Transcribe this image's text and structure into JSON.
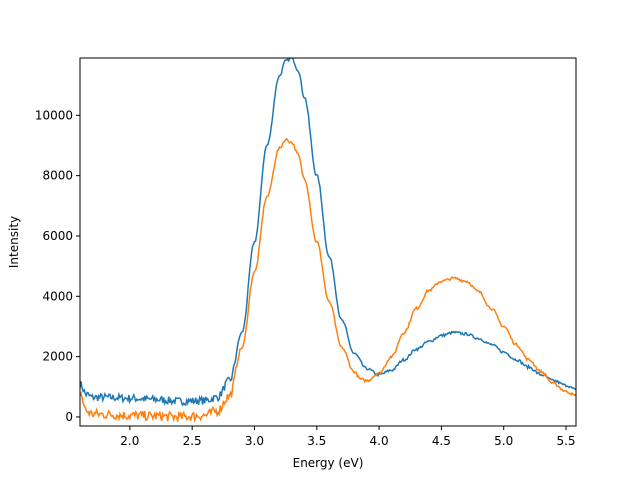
{
  "chart_data": {
    "type": "line",
    "title": "",
    "xlabel": "Energy (eV)",
    "ylabel": "Intensity",
    "xlim": [
      1.6,
      5.58
    ],
    "ylim": [
      -300,
      11900
    ],
    "grid": false,
    "legend": null,
    "xticks": [
      2.0,
      2.5,
      3.0,
      3.5,
      4.0,
      4.5,
      5.0,
      5.5
    ],
    "xtick_labels": [
      "2.0",
      "2.5",
      "3.0",
      "3.5",
      "4.0",
      "4.5",
      "5.0",
      "5.5"
    ],
    "yticks": [
      0,
      2000,
      4000,
      6000,
      8000,
      10000
    ],
    "ytick_labels": [
      "0",
      "2000",
      "4000",
      "6000",
      "8000",
      "10000"
    ],
    "series": [
      {
        "name": "series-1",
        "color": "#1f77b4",
        "x": [
          1.6,
          1.65,
          1.7,
          1.8,
          2.0,
          2.2,
          2.4,
          2.6,
          2.7,
          2.8,
          2.9,
          3.0,
          3.1,
          3.2,
          3.25,
          3.3,
          3.35,
          3.4,
          3.5,
          3.6,
          3.7,
          3.8,
          3.9,
          4.0,
          4.1,
          4.2,
          4.3,
          4.4,
          4.5,
          4.6,
          4.7,
          4.8,
          4.9,
          5.0,
          5.1,
          5.2,
          5.3,
          5.4,
          5.5,
          5.58
        ],
        "y": [
          1100,
          750,
          650,
          650,
          620,
          580,
          520,
          540,
          650,
          1200,
          2800,
          5800,
          9000,
          11300,
          11800,
          11900,
          11500,
          10600,
          8000,
          5300,
          3200,
          2100,
          1600,
          1400,
          1550,
          1900,
          2250,
          2500,
          2700,
          2800,
          2750,
          2600,
          2400,
          2150,
          1900,
          1650,
          1400,
          1200,
          1050,
          900
        ]
      },
      {
        "name": "series-2",
        "color": "#ff7f0e",
        "x": [
          1.6,
          1.65,
          1.7,
          1.8,
          2.0,
          2.2,
          2.4,
          2.6,
          2.7,
          2.8,
          2.9,
          3.0,
          3.1,
          3.2,
          3.25,
          3.3,
          3.35,
          3.4,
          3.5,
          3.6,
          3.7,
          3.8,
          3.85,
          3.9,
          4.0,
          4.1,
          4.2,
          4.3,
          4.4,
          4.5,
          4.6,
          4.7,
          4.8,
          4.9,
          5.0,
          5.1,
          5.2,
          5.3,
          5.4,
          5.5,
          5.58
        ],
        "y": [
          800,
          200,
          100,
          80,
          50,
          30,
          0,
          50,
          200,
          700,
          2300,
          4800,
          7300,
          8900,
          9200,
          9100,
          8700,
          7900,
          5800,
          3800,
          2300,
          1500,
          1250,
          1200,
          1450,
          2000,
          2800,
          3600,
          4200,
          4500,
          4600,
          4500,
          4150,
          3600,
          3000,
          2400,
          1900,
          1500,
          1100,
          850,
          700
        ]
      }
    ]
  }
}
